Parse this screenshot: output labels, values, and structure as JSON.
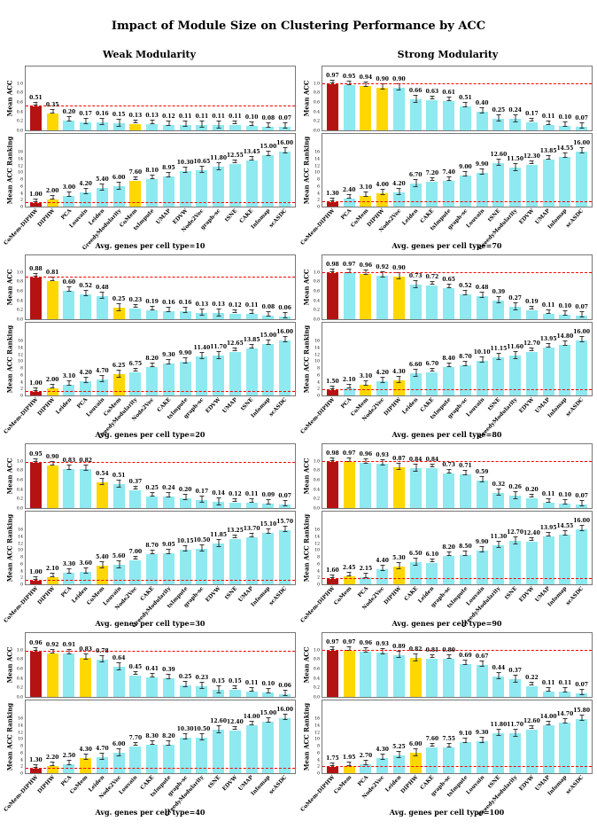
{
  "title": "Impact of Module Size on Clustering Performance by ACC",
  "column_headers": [
    "Weak Modularity",
    "Strong Modularity"
  ],
  "colors": {
    "bar_default": "#8ee9f0",
    "bar_main_method": "#b51212",
    "bar_component": "#ffd700",
    "refline": "#ff0000",
    "error_bar": "#333333"
  },
  "axes": {
    "acc_ylabel": "Mean ACC",
    "rank_ylabel": "Mean ACC Ranking",
    "acc_ticks": [
      "1.0",
      "0.8",
      "0.6",
      "0.4",
      "0.2",
      "0.0"
    ],
    "rank_ticks": [
      "16",
      "14",
      "12",
      "10",
      "8",
      "6",
      "4",
      "2",
      "0"
    ],
    "acc_ylim": [
      0,
      1.05
    ],
    "rank_ylim": [
      0,
      16.6
    ]
  },
  "highlight_rules": {
    "main_method": "CoMem-DIPHW",
    "components": [
      "CoMem",
      "DIPHW"
    ]
  },
  "chart_data": {
    "type": "bar",
    "panels": [
      {
        "column": "Weak Modularity",
        "caption": "Avg. genes per cell type=10",
        "methods": [
          "CoMem-DIPHW",
          "DIPHW",
          "PCA",
          "Louvain",
          "Leiden",
          "GreedyModularity",
          "CoMem",
          "tsImpute",
          "UMAP",
          "EDVW",
          "Node2Vec",
          "graph-sc",
          "tSNE",
          "CAKE",
          "Infomap",
          "scASDC"
        ],
        "acc": [
          0.51,
          0.35,
          0.2,
          0.17,
          0.16,
          0.15,
          0.13,
          0.13,
          0.12,
          0.11,
          0.11,
          0.11,
          0.11,
          0.1,
          0.08,
          0.07
        ],
        "rank": [
          1.0,
          2.0,
          3.0,
          4.2,
          5.4,
          6.0,
          7.6,
          8.1,
          8.95,
          10.3,
          10.65,
          11.8,
          12.55,
          13.45,
          15.0,
          16.0
        ]
      },
      {
        "column": "Strong Modularity",
        "caption": "Avg. genes per cell type=70",
        "methods": [
          "CoMem-DIPHW",
          "PCA",
          "CoMem",
          "DIPHW",
          "Node2Vec",
          "Leiden",
          "CAKE",
          "tsImpute",
          "graph-sc",
          "Louvain",
          "tSNE",
          "GreedyModularity",
          "EDVW",
          "UMAP",
          "Infomap",
          "scASDC"
        ],
        "acc": [
          0.97,
          0.95,
          0.94,
          0.9,
          0.9,
          0.66,
          0.63,
          0.61,
          0.51,
          0.4,
          0.25,
          0.24,
          0.17,
          0.11,
          0.1,
          0.07
        ],
        "rank": [
          1.3,
          2.4,
          3.1,
          4.0,
          4.2,
          6.7,
          7.2,
          7.4,
          9.0,
          9.9,
          12.6,
          11.5,
          12.3,
          13.85,
          14.55,
          16.0
        ]
      },
      {
        "column": "Weak Modularity",
        "caption": "Avg. genes per cell type=20",
        "methods": [
          "CoMem-DIPHW",
          "DIPHW",
          "Leiden",
          "PCA",
          "Louvain",
          "CoMem",
          "GreedyModularity",
          "Node2Vec",
          "CAKE",
          "tsImpute",
          "graph-sc",
          "EDVW",
          "UMAP",
          "tSNE",
          "Infomap",
          "scASDC"
        ],
        "acc": [
          0.88,
          0.81,
          0.6,
          0.52,
          0.48,
          0.25,
          0.23,
          0.19,
          0.16,
          0.16,
          0.13,
          0.13,
          0.12,
          0.11,
          0.08,
          0.06
        ],
        "rank": [
          1.0,
          2.0,
          3.1,
          4.2,
          4.7,
          6.25,
          6.75,
          8.2,
          9.3,
          9.9,
          11.4,
          11.7,
          12.65,
          13.85,
          15.0,
          16.0
        ]
      },
      {
        "column": "Strong Modularity",
        "caption": "Avg. genes per cell type=80",
        "methods": [
          "CoMem-DIPHW",
          "PCA",
          "CoMem",
          "Node2Vec",
          "DIPHW",
          "Leiden",
          "CAKE",
          "tsImpute",
          "graph-sc",
          "Louvain",
          "tSNE",
          "GreedyModularity",
          "EDVW",
          "UMAP",
          "Infomap",
          "scASDC"
        ],
        "acc": [
          0.98,
          0.97,
          0.96,
          0.92,
          0.9,
          0.73,
          0.72,
          0.65,
          0.52,
          0.48,
          0.39,
          0.27,
          0.19,
          0.11,
          0.1,
          0.07
        ],
        "rank": [
          1.5,
          2.1,
          3.1,
          4.2,
          4.3,
          6.6,
          6.7,
          8.4,
          8.7,
          10.1,
          11.15,
          11.6,
          12.7,
          13.95,
          14.8,
          16.0
        ]
      },
      {
        "column": "Weak Modularity",
        "caption": "Avg. genes per cell type=30",
        "methods": [
          "CoMem-DIPHW",
          "DIPHW",
          "PCA",
          "Leiden",
          "CoMem",
          "Louvain",
          "Node2Vec",
          "CAKE",
          "GreedyModularity",
          "tsImpute",
          "graph-sc",
          "EDVW",
          "tSNE",
          "UMAP",
          "Infomap",
          "scASDC"
        ],
        "acc": [
          0.95,
          0.9,
          0.83,
          0.82,
          0.54,
          0.51,
          0.37,
          0.25,
          0.24,
          0.2,
          0.17,
          0.14,
          0.12,
          0.11,
          0.09,
          0.07
        ],
        "rank": [
          1.0,
          2.1,
          3.3,
          3.6,
          5.4,
          5.6,
          7.0,
          8.7,
          9.05,
          10.15,
          10.5,
          11.85,
          13.25,
          13.7,
          15.1,
          15.7
        ]
      },
      {
        "column": "Strong Modularity",
        "caption": "Avg. genes per cell type=90",
        "methods": [
          "CoMem-DIPHW",
          "CoMem",
          "PCA",
          "Node2Vec",
          "DIPHW",
          "CAKE",
          "Leiden",
          "graph-sc",
          "tsImpute",
          "Louvain",
          "GreedyModularity",
          "tSNE",
          "EDVW",
          "UMAP",
          "Infomap",
          "scASDC"
        ],
        "acc": [
          0.98,
          0.97,
          0.96,
          0.93,
          0.87,
          0.84,
          0.84,
          0.73,
          0.71,
          0.59,
          0.32,
          0.26,
          0.2,
          0.11,
          0.1,
          0.07
        ],
        "rank": [
          1.6,
          2.45,
          2.15,
          4.4,
          5.3,
          6.5,
          6.1,
          8.2,
          8.5,
          9.9,
          11.3,
          12.7,
          12.4,
          13.95,
          14.55,
          16.0
        ]
      },
      {
        "column": "Weak Modularity",
        "caption": "Avg. genes per cell type=40",
        "methods": [
          "CoMem-DIPHW",
          "DIPHW",
          "PCA",
          "CoMem",
          "Leiden",
          "Node2Vec",
          "Louvain",
          "CAKE",
          "tsImpute",
          "graph-sc",
          "GreedyModularity",
          "tSNE",
          "EDVW",
          "UMAP",
          "Infomap",
          "scASDC"
        ],
        "acc": [
          0.96,
          0.92,
          0.91,
          0.83,
          0.78,
          0.64,
          0.45,
          0.41,
          0.39,
          0.25,
          0.23,
          0.15,
          0.15,
          0.11,
          0.1,
          0.06
        ],
        "rank": [
          1.3,
          2.2,
          2.5,
          4.3,
          4.7,
          6.0,
          7.7,
          8.3,
          8.2,
          10.3,
          10.5,
          12.6,
          12.4,
          14.0,
          15.0,
          16.0
        ]
      },
      {
        "column": "Strong Modularity",
        "caption": "Avg. genes per cell type=100",
        "methods": [
          "CoMem-DIPHW",
          "CoMem",
          "PCA",
          "Node2Vec",
          "Leiden",
          "DIPHW",
          "CAKE",
          "graph-sc",
          "tsImpute",
          "Louvain",
          "tSNE",
          "GreedyModularity",
          "EDVW",
          "UMAP",
          "Infomap",
          "scASDC"
        ],
        "acc": [
          0.97,
          0.97,
          0.96,
          0.93,
          0.89,
          0.82,
          0.81,
          0.8,
          0.69,
          0.67,
          0.44,
          0.37,
          0.22,
          0.11,
          0.11,
          0.07
        ],
        "rank": [
          1.75,
          1.95,
          2.7,
          4.3,
          5.25,
          6.0,
          7.6,
          7.55,
          9.1,
          9.3,
          11.8,
          11.7,
          12.6,
          14.0,
          14.7,
          15.8
        ]
      }
    ]
  }
}
